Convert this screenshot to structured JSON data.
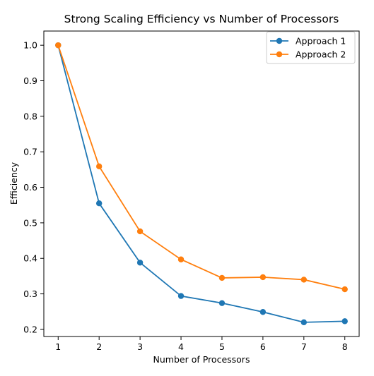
{
  "chart_data": {
    "type": "line",
    "title": "Strong Scaling Efficiency vs Number of Processors",
    "xlabel": "Number of Processors",
    "ylabel": "Efficiency",
    "x": [
      1,
      2,
      3,
      4,
      5,
      6,
      7,
      8
    ],
    "xticks": [
      "1",
      "2",
      "3",
      "4",
      "5",
      "6",
      "7",
      "8"
    ],
    "yticks": [
      "0.2",
      "0.3",
      "0.4",
      "0.5",
      "0.6",
      "0.7",
      "0.8",
      "0.9",
      "1.0"
    ],
    "xlim": [
      0.65,
      8.35
    ],
    "ylim": [
      0.18,
      1.04
    ],
    "grid": false,
    "legend_position": "top-right",
    "series": [
      {
        "name": "Approach 1",
        "color": "#1f77b4",
        "values": [
          1.0,
          0.555,
          0.388,
          0.294,
          0.274,
          0.249,
          0.22,
          0.223
        ]
      },
      {
        "name": "Approach 2",
        "color": "#ff7f0e",
        "values": [
          1.0,
          0.659,
          0.476,
          0.397,
          0.345,
          0.347,
          0.34,
          0.313
        ]
      }
    ]
  }
}
